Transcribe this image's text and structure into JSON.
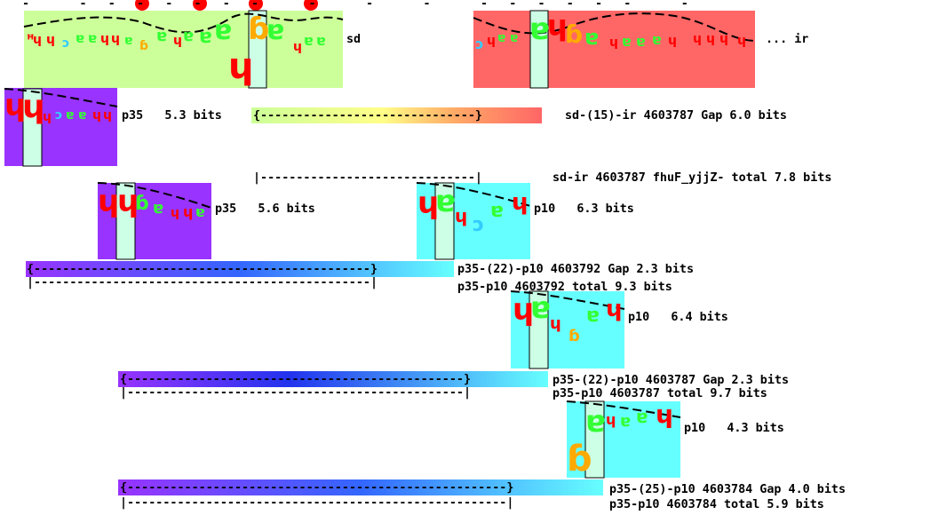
{
  "colors": {
    "sd_box": "#ccff99",
    "ir_box": "#ff6666",
    "p35_box": "#9933ff",
    "p10_box": "#66ffff",
    "window": "#ccffe6",
    "dot": "#ff0000",
    "letter_A": "#33ff33",
    "letter_C": "#33ccff",
    "letter_G": "#ffaa00",
    "letter_T": "#ff0000"
  },
  "top_ticks": "-       -   -   -   -   -   -   -       -       -       -       -   -   -   -   -   -       -",
  "motifs": {
    "sd": {
      "label": "sd"
    },
    "ir": {
      "label": "... ir"
    },
    "p35_row1": {
      "label": "p35   5.3 bits"
    },
    "p35_row2": {
      "label": "p35   5.6 bits"
    },
    "p10_row2": {
      "label": "p10   6.3 bits"
    },
    "p10_row3": {
      "label": "p10   6.4 bits"
    },
    "p10_row4": {
      "label": "p10   4.3 bits"
    }
  },
  "bars": {
    "sd_ir_gap": {
      "text": "{------------------------------}",
      "label": "sd-(15)-ir 4603787 Gap 6.0 bits"
    },
    "sd_ir_total": {
      "text": "|------------------------------|",
      "label": "sd-ir 4603787 fhuF_yjjZ- total 7.8 bits"
    },
    "p35_p10_gap_1": {
      "text": "{-----------------------------------------------}",
      "label": "p35-(22)-p10 4603792 Gap 2.3 bits"
    },
    "p35_p10_total_1": {
      "text": "|-----------------------------------------------|",
      "label": "p35-p10 4603792 total 9.3 bits"
    },
    "p35_p10_gap_2": {
      "text": "{-----------------------------------------------}",
      "label": "p35-(22)-p10 4603787 Gap 2.3 bits"
    },
    "p35_p10_total_2": {
      "text": "|-----------------------------------------------|",
      "label": "p35-p10 4603787 total 9.7 bits"
    },
    "p35_p10_gap_3": {
      "text": "{-----------------------------------------------------}",
      "label": "p35-(25)-p10 4603784 Gap 4.0 bits"
    },
    "p35_p10_total_3": {
      "text": "|-----------------------------------------------------|",
      "label": "p35-p10 4603784 total 5.9 bits"
    }
  }
}
